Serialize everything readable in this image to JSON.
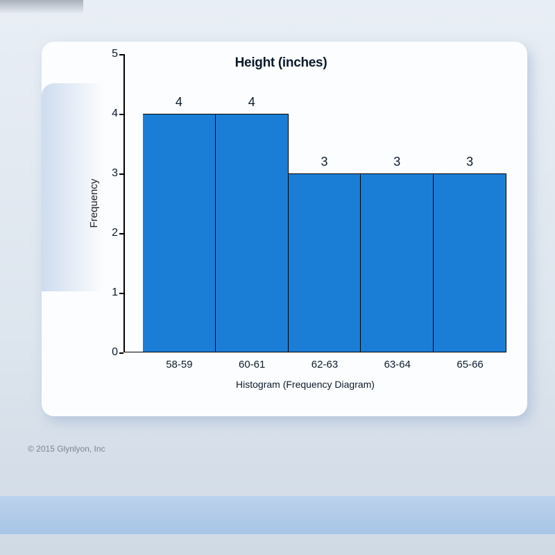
{
  "histogram": {
    "type": "bar",
    "title": "Height (inches)",
    "ylabel": "Frequency",
    "x_title": "Histogram (Frequency Diagram)",
    "categories": [
      "58-59",
      "60-61",
      "62-63",
      "63-64",
      "65-66"
    ],
    "values": [
      4,
      4,
      3,
      3,
      3
    ],
    "bar_color": "#1b7ed6",
    "ylim": [
      0,
      5
    ],
    "ytick_step": 1,
    "yticks": [
      0,
      1,
      2,
      3,
      4,
      5
    ],
    "background_color": "#fcfdfe",
    "axis_color": "#000000",
    "title_fontsize": 19,
    "label_fontsize": 15,
    "tick_fontsize": 16,
    "value_fontsize": 18
  },
  "copyright": "© 2015 Glynlyon, Inc"
}
